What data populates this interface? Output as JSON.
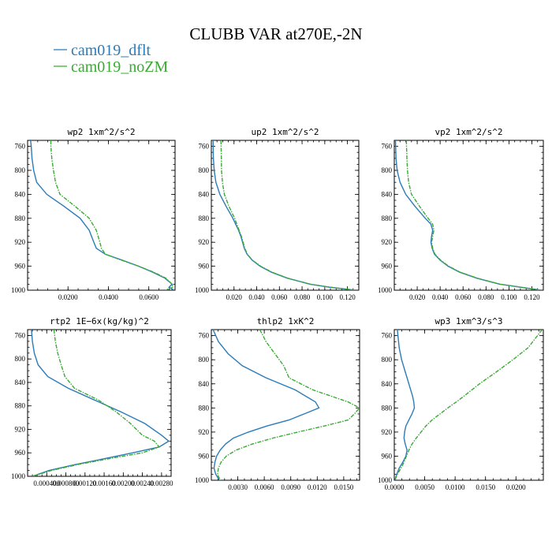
{
  "title": "CLUBB VAR at270E,-2N",
  "legend": [
    {
      "label": "cam019_dflt",
      "color": "#2b7bb9"
    },
    {
      "label": "cam019_noZM",
      "color": "#3aaa35"
    }
  ],
  "chart_data": [
    {
      "type": "line",
      "title": "wp2   1xm^2/s^2",
      "xlim": [
        0,
        0.073
      ],
      "ylim": [
        1000,
        750
      ],
      "xticks": [
        0.02,
        0.04,
        0.06
      ],
      "xticklabels": [
        "0.0200",
        "0.0400",
        "0.0600"
      ],
      "yticks": [
        760,
        800,
        840,
        880,
        920,
        960,
        1000
      ],
      "yticklabels": [
        "760",
        "800",
        "840",
        "880",
        "920",
        "960",
        "1000"
      ],
      "y": [
        750,
        760,
        780,
        800,
        820,
        840,
        860,
        880,
        900,
        920,
        930,
        940,
        950,
        960,
        970,
        980,
        990,
        995,
        1000
      ],
      "series": [
        {
          "name": "cam019_dflt",
          "values": [
            0.0015,
            0.0018,
            0.0022,
            0.003,
            0.0045,
            0.0095,
            0.018,
            0.026,
            0.0305,
            0.0328,
            0.034,
            0.0385,
            0.047,
            0.055,
            0.062,
            0.068,
            0.0715,
            0.07,
            0.0725
          ]
        },
        {
          "name": "cam019_noZM",
          "values": [
            0.0115,
            0.0115,
            0.012,
            0.0128,
            0.0138,
            0.016,
            0.0235,
            0.0305,
            0.034,
            0.0358,
            0.0365,
            0.0385,
            0.0465,
            0.055,
            0.0625,
            0.0685,
            0.0715,
            0.072,
            0.068
          ]
        }
      ]
    },
    {
      "type": "line",
      "title": "up2   1xm^2/s^2",
      "xlim": [
        0,
        0.13
      ],
      "ylim": [
        1000,
        750
      ],
      "xticks": [
        0.02,
        0.04,
        0.06,
        0.08,
        0.1,
        0.12
      ],
      "xticklabels": [
        "0.020",
        "0.040",
        "0.060",
        "0.080",
        "0.100",
        "0.120"
      ],
      "yticks": [
        760,
        800,
        840,
        880,
        920,
        960,
        1000
      ],
      "yticklabels": [
        "760",
        "800",
        "840",
        "880",
        "920",
        "960",
        "1000"
      ],
      "y": [
        750,
        780,
        800,
        820,
        840,
        860,
        880,
        900,
        910,
        920,
        930,
        940,
        950,
        960,
        970,
        980,
        990,
        995,
        1000
      ],
      "series": [
        {
          "name": "cam019_dflt",
          "values": [
            0.0015,
            0.0018,
            0.0025,
            0.004,
            0.0075,
            0.013,
            0.019,
            0.024,
            0.026,
            0.0275,
            0.029,
            0.0315,
            0.036,
            0.043,
            0.053,
            0.067,
            0.087,
            0.104,
            0.127
          ]
        },
        {
          "name": "cam019_noZM",
          "values": [
            0.0085,
            0.0088,
            0.009,
            0.0098,
            0.0115,
            0.0155,
            0.0205,
            0.0245,
            0.0265,
            0.028,
            0.0295,
            0.0318,
            0.0363,
            0.0435,
            0.0535,
            0.0675,
            0.0875,
            0.105,
            0.127
          ]
        }
      ]
    },
    {
      "type": "line",
      "title": "vp2   1xm^2/s^2",
      "xlim": [
        0,
        0.13
      ],
      "ylim": [
        1000,
        750
      ],
      "xticks": [
        0.02,
        0.04,
        0.06,
        0.08,
        0.1,
        0.12
      ],
      "xticklabels": [
        "0.020",
        "0.040",
        "0.060",
        "0.080",
        "0.100",
        "0.120"
      ],
      "yticks": [
        760,
        800,
        840,
        880,
        920,
        960,
        1000
      ],
      "yticklabels": [
        "760",
        "800",
        "840",
        "880",
        "920",
        "960",
        "1000"
      ],
      "y": [
        750,
        780,
        800,
        820,
        840,
        860,
        880,
        890,
        900,
        910,
        920,
        930,
        940,
        950,
        960,
        970,
        980,
        990,
        1000
      ],
      "series": [
        {
          "name": "cam019_dflt",
          "values": [
            0.001,
            0.0015,
            0.0025,
            0.005,
            0.01,
            0.018,
            0.027,
            0.032,
            0.0335,
            0.0325,
            0.032,
            0.033,
            0.035,
            0.04,
            0.047,
            0.057,
            0.072,
            0.092,
            0.128
          ]
        },
        {
          "name": "cam019_noZM",
          "values": [
            0.0105,
            0.011,
            0.0115,
            0.0125,
            0.015,
            0.022,
            0.0295,
            0.0335,
            0.0345,
            0.0335,
            0.0325,
            0.0335,
            0.0355,
            0.0405,
            0.0475,
            0.0575,
            0.0725,
            0.0925,
            0.128
          ]
        }
      ]
    },
    {
      "type": "line",
      "title": "rtp2   1E−6x(kg/kg)^2",
      "xlim": [
        0,
        0.003
      ],
      "ylim": [
        1000,
        750
      ],
      "xticks": [
        0.0004,
        0.0008,
        0.0012,
        0.0016,
        0.002,
        0.0024,
        0.0028
      ],
      "xticklabels": [
        "0.000400",
        "0.000800",
        "0.00120",
        "0.00160",
        "0.00200",
        "0.00240",
        "0.00280"
      ],
      "yticks": [
        760,
        800,
        840,
        880,
        920,
        960,
        1000
      ],
      "yticklabels": [
        "760",
        "800",
        "840",
        "880",
        "920",
        "960",
        "1000"
      ],
      "y": [
        750,
        770,
        790,
        810,
        830,
        850,
        870,
        890,
        910,
        930,
        940,
        950,
        960,
        970,
        980,
        990,
        1000
      ],
      "series": [
        {
          "name": "cam019_dflt",
          "values": [
            8e-05,
            0.0001,
            0.00014,
            0.00022,
            0.00042,
            0.00085,
            0.0014,
            0.00195,
            0.00245,
            0.0028,
            0.00295,
            0.00275,
            0.0022,
            0.0016,
            0.001,
            0.00045,
            0.0001
          ]
        },
        {
          "name": "cam019_noZM",
          "values": [
            0.00055,
            0.00058,
            0.00063,
            0.0007,
            0.00078,
            0.00098,
            0.00148,
            0.00185,
            0.00215,
            0.0024,
            0.00265,
            0.00275,
            0.0024,
            0.0017,
            0.00105,
            0.0005,
            0.0001
          ]
        }
      ]
    },
    {
      "type": "line",
      "title": "thlp2   1xK^2",
      "xlim": [
        0,
        0.0168
      ],
      "ylim": [
        1000,
        750
      ],
      "xticks": [
        0.003,
        0.006,
        0.009,
        0.012,
        0.015
      ],
      "xticklabels": [
        "0.0030",
        "0.0060",
        "0.0090",
        "0.0120",
        "0.0150"
      ],
      "yticks": [
        760,
        800,
        840,
        880,
        920,
        960,
        1000
      ],
      "yticklabels": [
        "760",
        "800",
        "840",
        "880",
        "920",
        "960",
        "1000"
      ],
      "y": [
        750,
        770,
        790,
        810,
        830,
        850,
        870,
        880,
        890,
        900,
        910,
        920,
        930,
        940,
        950,
        960,
        970,
        980,
        990,
        1000
      ],
      "series": [
        {
          "name": "cam019_dflt",
          "values": [
            0.0002,
            0.0008,
            0.0019,
            0.0035,
            0.0062,
            0.0095,
            0.0118,
            0.0122,
            0.0105,
            0.0088,
            0.0063,
            0.0042,
            0.0025,
            0.0016,
            0.001,
            0.0006,
            0.0004,
            0.0003,
            0.0005,
            0.0009
          ]
        },
        {
          "name": "cam019_noZM",
          "values": [
            0.0055,
            0.0062,
            0.0072,
            0.0082,
            0.0088,
            0.0115,
            0.0155,
            0.0168,
            0.0162,
            0.0155,
            0.0128,
            0.0098,
            0.007,
            0.0046,
            0.0028,
            0.0017,
            0.0011,
            0.0008,
            0.0007,
            0.001
          ]
        }
      ]
    },
    {
      "type": "line",
      "title": "wp3   1xm^3/s^3",
      "xlim": [
        0,
        0.0245
      ],
      "ylim": [
        1000,
        750
      ],
      "xticks": [
        0,
        0.005,
        0.01,
        0.015,
        0.02
      ],
      "xticklabels": [
        "0.0000",
        "0.0050",
        "0.0100",
        "0.0150",
        "0.0200"
      ],
      "yticks": [
        760,
        800,
        840,
        880,
        920,
        960,
        1000
      ],
      "yticklabels": [
        "760",
        "800",
        "840",
        "880",
        "920",
        "960",
        "1000"
      ],
      "y": [
        750,
        780,
        800,
        820,
        840,
        860,
        870,
        880,
        890,
        900,
        910,
        920,
        930,
        940,
        950,
        960,
        970,
        980,
        990,
        1000
      ],
      "series": [
        {
          "name": "cam019_dflt",
          "values": [
            0.0005,
            0.0008,
            0.0012,
            0.0018,
            0.0024,
            0.003,
            0.0032,
            0.0033,
            0.0029,
            0.0024,
            0.0019,
            0.0017,
            0.0016,
            0.0018,
            0.0021,
            0.0019,
            0.0014,
            0.0008,
            0.0004,
            0.0001
          ]
        },
        {
          "name": "cam019_noZM",
          "values": [
            0.0243,
            0.022,
            0.0195,
            0.0168,
            0.014,
            0.0115,
            0.0102,
            0.0088,
            0.0075,
            0.0062,
            0.0052,
            0.0044,
            0.0036,
            0.0029,
            0.0024,
            0.002,
            0.0016,
            0.0011,
            0.0005,
            0.0001
          ]
        }
      ]
    }
  ]
}
